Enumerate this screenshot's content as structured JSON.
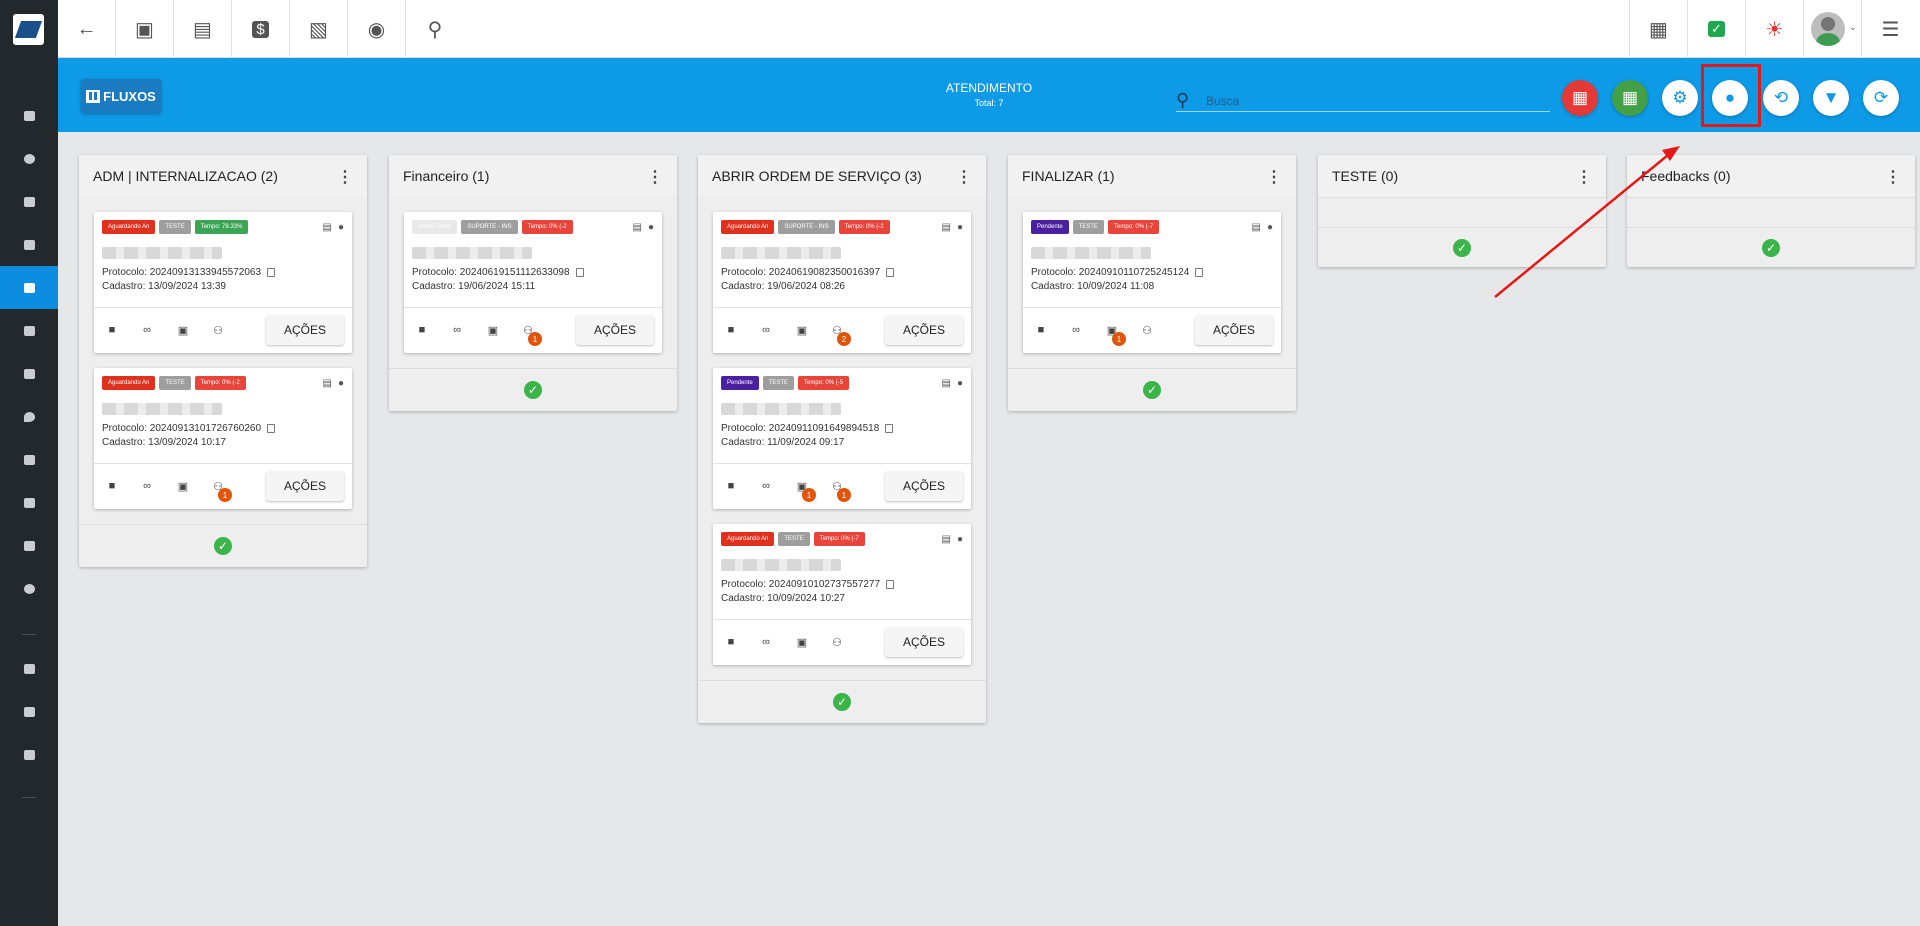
{
  "header": {
    "fluxos_label": "FLUXOS",
    "title": "ATENDIMENTO",
    "total": "Total: 7",
    "search_placeholder": "Busca"
  },
  "columns": [
    {
      "title": "ADM | INTERNALIZACAO (2)",
      "cards": [
        {
          "tags": [
            {
              "text": "Aguardando An",
              "color": "#e0301e"
            },
            {
              "text": "TESTE",
              "color": "#9e9e9e"
            },
            {
              "text": "Tempo: 78.33%",
              "color": "#3aa655"
            }
          ],
          "protocolo": "Protocolo: 20240913133945572063",
          "cadastro": "Cadastro: 13/09/2024 13:39",
          "badges": []
        },
        {
          "tags": [
            {
              "text": "Aguardando An",
              "color": "#e0301e"
            },
            {
              "text": "TESTE",
              "color": "#9e9e9e"
            },
            {
              "text": "Tempo: 0% (-2",
              "color": "#e8443a"
            }
          ],
          "protocolo": "Protocolo: 20240913101726760260",
          "cadastro": "Cadastro: 13/09/2024 10:17",
          "badges": [
            {
              "pos": "users",
              "count": "1"
            }
          ]
        }
      ]
    },
    {
      "title": "Financeiro (1)",
      "cards": [
        {
          "tags": [
            {
              "text": "Verdo Tivem",
              "color": "#e8e8e8"
            },
            {
              "text": "SUPORTE - INS",
              "color": "#9e9e9e"
            },
            {
              "text": "Tempo: 0% (-2",
              "color": "#e8443a"
            }
          ],
          "protocolo": "Protocolo: 20240619151112633098",
          "cadastro": "Cadastro: 19/06/2024 15:11",
          "badges": [
            {
              "pos": "users",
              "count": "1"
            }
          ]
        }
      ]
    },
    {
      "title": "ABRIR ORDEM DE SERVIÇO (3)",
      "cards": [
        {
          "tags": [
            {
              "text": "Aguardando An",
              "color": "#e0301e"
            },
            {
              "text": "SUPORTE - INS",
              "color": "#9e9e9e"
            },
            {
              "text": "Tempo: 0% (-2",
              "color": "#e8443a"
            }
          ],
          "protocolo": "Protocolo: 20240619082350016397",
          "cadastro": "Cadastro: 19/06/2024 08:26",
          "badges": [
            {
              "pos": "users",
              "count": "2"
            }
          ]
        },
        {
          "tags": [
            {
              "text": "Pendente",
              "color": "#4a1fa0"
            },
            {
              "text": "TESTE",
              "color": "#9e9e9e"
            },
            {
              "text": "Tempo: 0% (-5",
              "color": "#e8443a"
            }
          ],
          "protocolo": "Protocolo: 20240911091649894518",
          "cadastro": "Cadastro: 11/09/2024 09:17",
          "badges": [
            {
              "pos": "doc",
              "count": "1"
            },
            {
              "pos": "users",
              "count": "1"
            }
          ]
        },
        {
          "tags": [
            {
              "text": "Aguardando An",
              "color": "#e0301e"
            },
            {
              "text": "TESTE",
              "color": "#9e9e9e"
            },
            {
              "text": "Tempo: 0% (-7",
              "color": "#e8443a"
            }
          ],
          "protocolo": "Protocolo: 20240910102737557277",
          "cadastro": "Cadastro: 10/09/2024 10:27",
          "badges": []
        }
      ]
    },
    {
      "title": "FINALIZAR (1)",
      "cards": [
        {
          "tags": [
            {
              "text": "Pendente",
              "color": "#4a1fa0"
            },
            {
              "text": "TESTE",
              "color": "#9e9e9e"
            },
            {
              "text": "Tempo: 0% (-7",
              "color": "#e8443a"
            }
          ],
          "protocolo": "Protocolo: 20240910110725245124",
          "cadastro": "Cadastro: 10/09/2024 11:08",
          "badges": [
            {
              "pos": "doc",
              "count": "1"
            }
          ]
        }
      ]
    },
    {
      "title": "TESTE (0)",
      "cards": []
    },
    {
      "title": "Feedbacks (0)",
      "cards": []
    }
  ],
  "acoes_label": "AÇÕES",
  "colors": {
    "header": "#0d9ae6",
    "sidebar": "#23282d",
    "active": "#0d8de0",
    "check": "#3bb54a",
    "highlight": "#e31919"
  }
}
